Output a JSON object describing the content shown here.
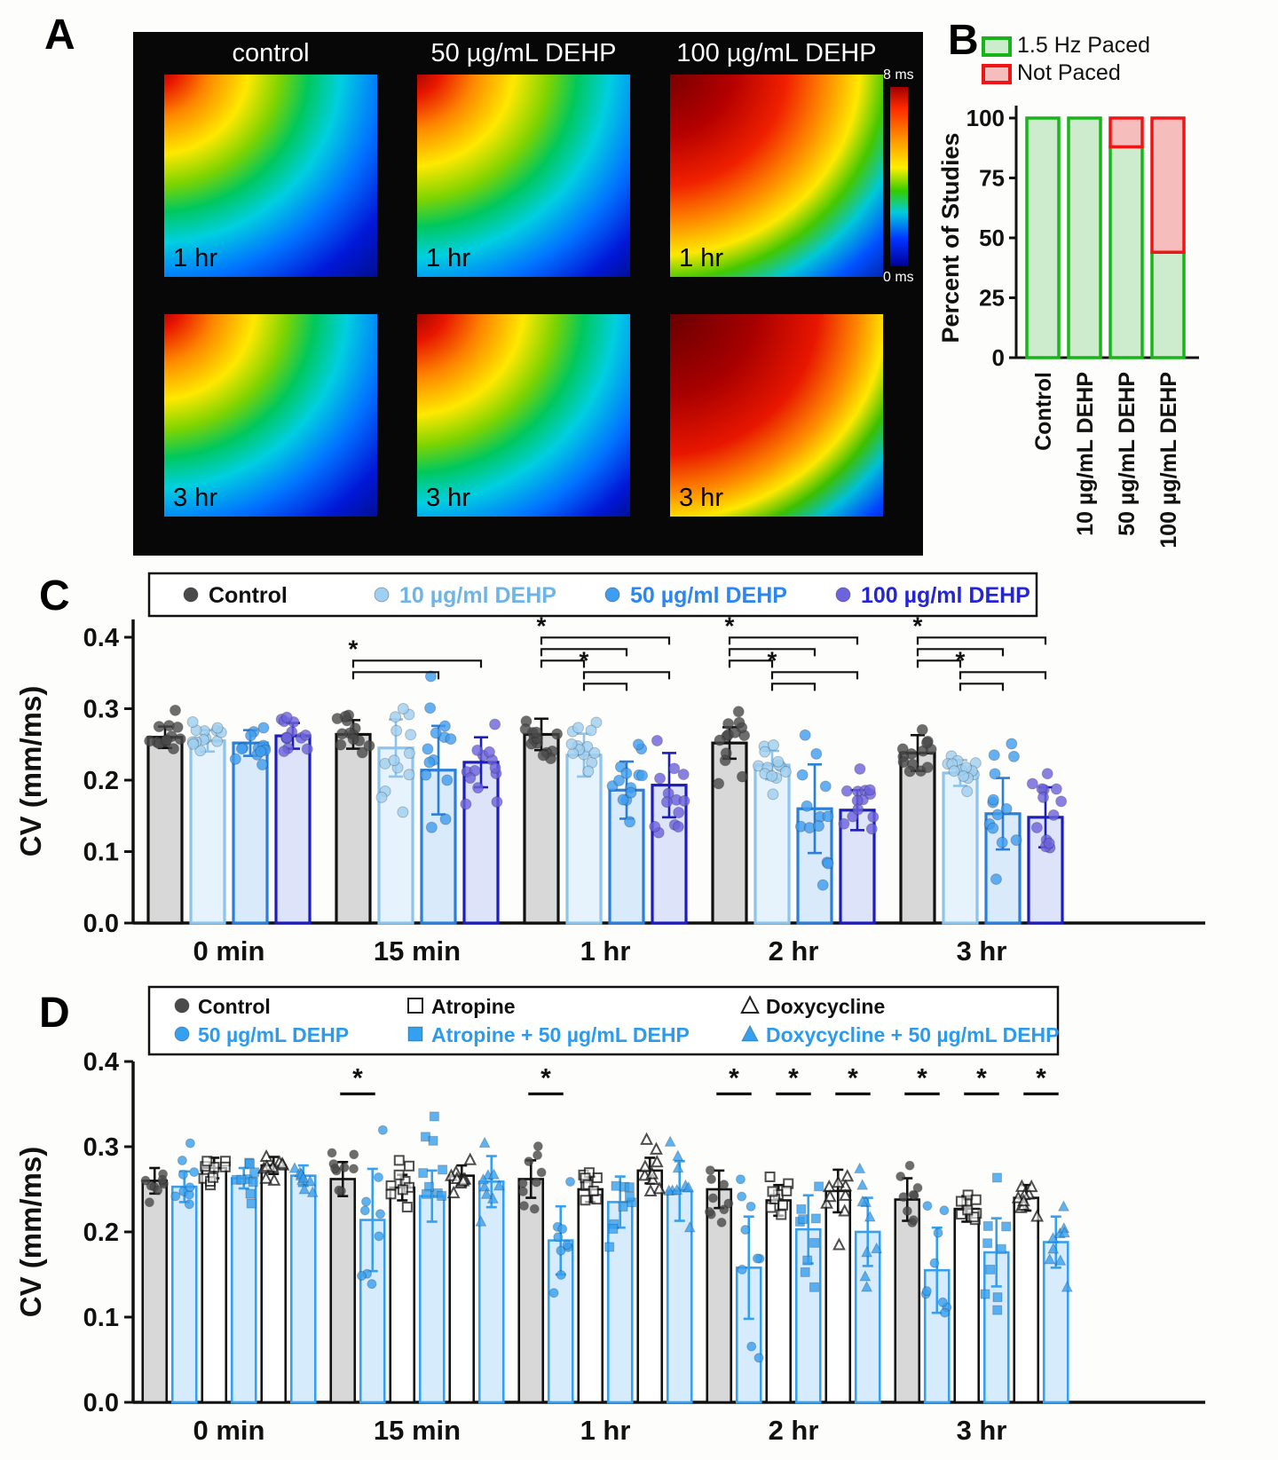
{
  "panel_labels": {
    "A": "A",
    "B": "B",
    "C": "C",
    "D": "D"
  },
  "panelA": {
    "columns": [
      "control",
      "50 µg/mL DEHP",
      "100 µg/mL DEHP"
    ],
    "row_labels": [
      "1 hr",
      "3 hr"
    ],
    "colorbar": {
      "top": "8 ms",
      "bottom": "0 ms"
    }
  },
  "chart_data": [
    {
      "id": "B",
      "type": "bar",
      "stacked": true,
      "ylabel": "Percent of Studies",
      "ylim": [
        0,
        100
      ],
      "yticks": [
        0,
        25,
        50,
        75,
        100
      ],
      "categories": [
        "Control",
        "10 µg/mL DEHP",
        "50 µg/mL DEHP",
        "100 µg/mL DEHP"
      ],
      "legend_position": "top-left",
      "series": [
        {
          "name": "1.5 Hz Paced",
          "color": "#17b517",
          "fill": "#cdeccd",
          "values": [
            100,
            100,
            88,
            44
          ]
        },
        {
          "name": "Not Paced",
          "color": "#f01515",
          "fill": "#f6bdbd",
          "values": [
            0,
            0,
            12,
            56
          ]
        }
      ]
    },
    {
      "id": "C",
      "type": "bar+scatter",
      "ylabel": "CV (mm/ms)",
      "ylim": [
        0,
        0.45
      ],
      "yticks": [
        0,
        0.1,
        0.2,
        0.3,
        0.4
      ],
      "categories": [
        "0 min",
        "15 min",
        "1 hr",
        "2 hr",
        "3 hr"
      ],
      "series": [
        {
          "name": "Control",
          "marker": "circle",
          "marker_fill": "filled",
          "dot": "#4a4a4a",
          "edge": "#111111",
          "fill": "#d8d8d8",
          "legend_color": "#111111",
          "values": [
            0.26,
            0.264,
            0.264,
            0.252,
            0.238
          ],
          "sd": [
            0.015,
            0.02,
            0.022,
            0.022,
            0.025
          ]
        },
        {
          "name": "10 µg/ml DEHP",
          "marker": "circle",
          "marker_fill": "filled",
          "dot": "#9fd0f1",
          "edge": "#8cc4ec",
          "fill": "#e6f3fc",
          "legend_color": "#6fb4e6",
          "values": [
            0.255,
            0.245,
            0.235,
            0.221,
            0.21
          ],
          "sd": [
            0.015,
            0.04,
            0.03,
            0.02,
            0.018
          ]
        },
        {
          "name": "50 µg/ml DEHP",
          "marker": "circle",
          "marker_fill": "filled",
          "dot": "#3f9df0",
          "edge": "#2b7fd8",
          "fill": "#d9ebfa",
          "legend_color": "#2b86f0",
          "values": [
            0.252,
            0.214,
            0.186,
            0.16,
            0.153
          ],
          "sd": [
            0.018,
            0.062,
            0.04,
            0.062,
            0.05
          ]
        },
        {
          "name": "100 µg/ml DEHP",
          "marker": "circle",
          "marker_fill": "filled",
          "dot": "#6c63dd",
          "edge": "#1d1dbe",
          "fill": "#dde3f9",
          "legend_color": "#2525d8",
          "values": [
            0.262,
            0.225,
            0.193,
            0.158,
            0.148
          ],
          "sd": [
            0.018,
            0.035,
            0.045,
            0.028,
            0.042
          ]
        }
      ],
      "sig": [
        {
          "group": 1,
          "from": 0,
          "to": 2,
          "level": 1,
          "star": false
        },
        {
          "group": 1,
          "from": 0,
          "to": 3,
          "level": 2,
          "star": true
        },
        {
          "group": 2,
          "from": 1,
          "to": 2,
          "level": 0,
          "star": false
        },
        {
          "group": 2,
          "from": 1,
          "to": 3,
          "level": 1,
          "star": true
        },
        {
          "group": 2,
          "from": 0,
          "to": 1,
          "level": 2,
          "star": false
        },
        {
          "group": 2,
          "from": 0,
          "to": 2,
          "level": 3,
          "star": false
        },
        {
          "group": 2,
          "from": 0,
          "to": 3,
          "level": 4,
          "star": true
        },
        {
          "group": 3,
          "from": 1,
          "to": 2,
          "level": 0,
          "star": false
        },
        {
          "group": 3,
          "from": 1,
          "to": 3,
          "level": 1,
          "star": true
        },
        {
          "group": 3,
          "from": 0,
          "to": 1,
          "level": 2,
          "star": false
        },
        {
          "group": 3,
          "from": 0,
          "to": 2,
          "level": 3,
          "star": false
        },
        {
          "group": 3,
          "from": 0,
          "to": 3,
          "level": 4,
          "star": true
        },
        {
          "group": 4,
          "from": 1,
          "to": 2,
          "level": 0,
          "star": false
        },
        {
          "group": 4,
          "from": 1,
          "to": 3,
          "level": 1,
          "star": true
        },
        {
          "group": 4,
          "from": 0,
          "to": 1,
          "level": 2,
          "star": false
        },
        {
          "group": 4,
          "from": 0,
          "to": 2,
          "level": 3,
          "star": false
        },
        {
          "group": 4,
          "from": 0,
          "to": 3,
          "level": 4,
          "star": true
        }
      ]
    },
    {
      "id": "D",
      "type": "bar+scatter",
      "ylabel": "CV (mm/ms)",
      "ylim": [
        0,
        0.45
      ],
      "yticks": [
        0,
        0.1,
        0.2,
        0.3,
        0.4
      ],
      "categories": [
        "0 min",
        "15 min",
        "1 hr",
        "2 hr",
        "3 hr"
      ],
      "series": [
        {
          "name": "Control",
          "marker": "circle",
          "marker_fill": "filled",
          "dot": "#4a4a4a",
          "edge": "#111111",
          "fill": "#d8d8d8",
          "legend_color": "#111111",
          "values": [
            0.26,
            0.262,
            0.262,
            0.25,
            0.238
          ],
          "sd": [
            0.015,
            0.02,
            0.022,
            0.022,
            0.025
          ]
        },
        {
          "name": "50 µg/mL DEHP",
          "marker": "circle",
          "marker_fill": "filled",
          "dot": "#36a0f0",
          "edge": "#36a0f0",
          "fill": "#d6ecfd",
          "legend_color": "#2b9bf0",
          "values": [
            0.253,
            0.214,
            0.19,
            0.158,
            0.155
          ],
          "sd": [
            0.018,
            0.06,
            0.04,
            0.06,
            0.05
          ]
        },
        {
          "name": "Atropine",
          "marker": "square",
          "marker_fill": "open",
          "dot": "#111111",
          "edge": "#111111",
          "fill": "#ffffff",
          "legend_color": "#111111",
          "values": [
            0.275,
            0.252,
            0.25,
            0.237,
            0.227
          ],
          "sd": [
            0.012,
            0.015,
            0.015,
            0.018,
            0.015
          ]
        },
        {
          "name": "Atropine + 50 µg/mL DEHP",
          "marker": "square",
          "marker_fill": "filled",
          "dot": "#36a0f0",
          "edge": "#36a0f0",
          "fill": "#d6ecfd",
          "legend_color": "#2b9bf0",
          "values": [
            0.263,
            0.242,
            0.235,
            0.203,
            0.176
          ],
          "sd": [
            0.012,
            0.03,
            0.03,
            0.04,
            0.04
          ]
        },
        {
          "name": "Doxycycline",
          "marker": "triangle",
          "marker_fill": "open",
          "dot": "#111111",
          "edge": "#111111",
          "fill": "#ffffff",
          "legend_color": "#111111",
          "values": [
            0.278,
            0.266,
            0.272,
            0.248,
            0.24
          ],
          "sd": [
            0.01,
            0.012,
            0.015,
            0.025,
            0.015
          ]
        },
        {
          "name": "Doxycycline + 50 µg/mL DEHP",
          "marker": "triangle",
          "marker_fill": "filled",
          "dot": "#36a0f0",
          "edge": "#36a0f0",
          "fill": "#d6ecfd",
          "legend_color": "#2b9bf0",
          "values": [
            0.266,
            0.259,
            0.248,
            0.2,
            0.188
          ],
          "sd": [
            0.012,
            0.03,
            0.035,
            0.04,
            0.03
          ]
        }
      ],
      "sig": [
        {
          "group": 1,
          "from": 0,
          "to": 1
        },
        {
          "group": 2,
          "from": 0,
          "to": 1
        },
        {
          "group": 3,
          "from": 0,
          "to": 1
        },
        {
          "group": 3,
          "from": 2,
          "to": 3
        },
        {
          "group": 3,
          "from": 4,
          "to": 5
        },
        {
          "group": 4,
          "from": 0,
          "to": 1
        },
        {
          "group": 4,
          "from": 2,
          "to": 3
        },
        {
          "group": 4,
          "from": 4,
          "to": 5
        }
      ]
    }
  ]
}
